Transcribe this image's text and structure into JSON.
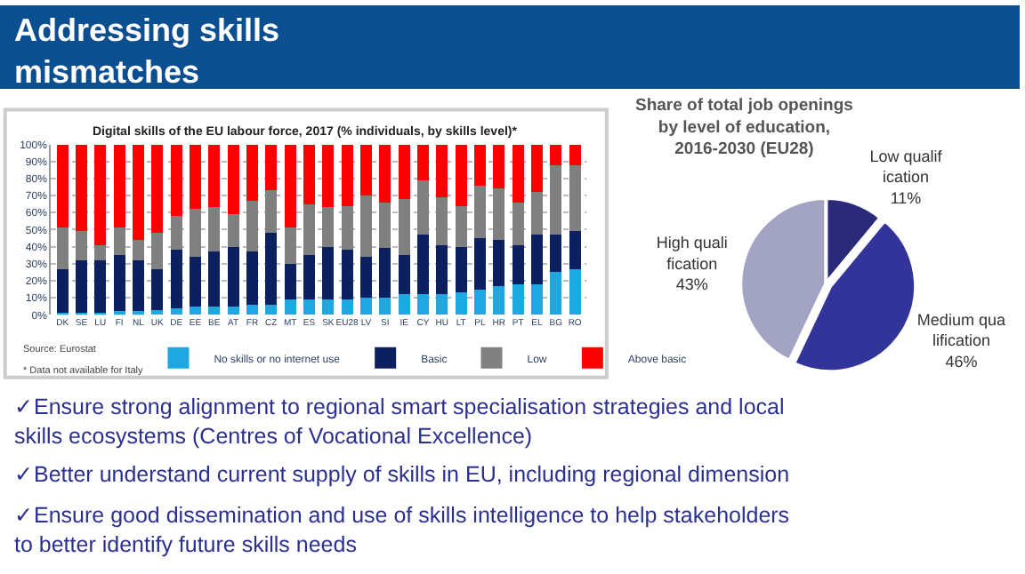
{
  "chart_data": [
    {
      "type": "other",
      "title": "Addressing skills mismatches",
      "annotations": [
        "✓Ensure strong alignment to regional smart specialisation strategies and local skills ecosystems (Centres of Vocational Excellence)",
        "✓Better understand current supply of skills in EU, including regional dimension",
        "✓Ensure good dissemination and use of skills intelligence to help stakeholders to better identify future skills needs"
      ]
    },
    {
      "type": "bar",
      "stacked": true,
      "title": "Digital skills of the EU labour force, 2017 (% individuals, by skills level)*",
      "categories": [
        "DK",
        "SE",
        "LU",
        "FI",
        "NL",
        "UK",
        "DE",
        "EE",
        "BE",
        "AT",
        "FR",
        "CZ",
        "MT",
        "ES",
        "SK",
        "EU28",
        "LV",
        "SI",
        "IE",
        "CY",
        "HU",
        "LT",
        "PL",
        "HR",
        "PT",
        "EL",
        "BG",
        "RO"
      ],
      "series": [
        {
          "name": "No skills or no internet use",
          "color": "#1fa8e0",
          "values": [
            1,
            1,
            1,
            2,
            2,
            3,
            4,
            5,
            5,
            5,
            6,
            6,
            9,
            9,
            9,
            9,
            10,
            10,
            12,
            12,
            12,
            13,
            15,
            17,
            18,
            18,
            25,
            27
          ]
        },
        {
          "name": "Basic",
          "color": "#0c1f5e",
          "values": [
            26,
            31,
            31,
            33,
            30,
            24,
            34,
            29,
            32,
            35,
            31,
            42,
            21,
            26,
            31,
            29,
            24,
            29,
            23,
            35,
            29,
            27,
            30,
            27,
            23,
            29,
            22,
            22
          ]
        },
        {
          "name": "Low",
          "color": "#808080",
          "values": [
            24,
            17,
            9,
            16,
            12,
            21,
            20,
            28,
            26,
            19,
            30,
            25,
            21,
            30,
            23,
            26,
            36,
            27,
            33,
            32,
            28,
            24,
            31,
            30,
            25,
            25,
            41,
            39
          ]
        },
        {
          "name": "Above basic",
          "color": "#ff0000",
          "values": [
            49,
            51,
            59,
            49,
            56,
            52,
            42,
            38,
            37,
            41,
            33,
            27,
            49,
            35,
            37,
            36,
            30,
            34,
            32,
            21,
            31,
            36,
            24,
            26,
            34,
            28,
            12,
            12
          ]
        }
      ],
      "ylim": [
        0,
        100
      ],
      "yticks": [
        {
          "value": 0,
          "label": "0%"
        },
        {
          "value": 10,
          "label": "10%"
        },
        {
          "value": 20,
          "label": "20%"
        },
        {
          "value": 30,
          "label": "30%"
        },
        {
          "value": 40,
          "label": "40%"
        },
        {
          "value": 50,
          "label": "50%"
        },
        {
          "value": 60,
          "label": "60%"
        },
        {
          "value": 70,
          "label": "70%"
        },
        {
          "value": 80,
          "label": "80%"
        },
        {
          "value": 90,
          "label": "90%"
        },
        {
          "value": 100,
          "label": "100%"
        }
      ],
      "grid": "y",
      "legend": "bottom",
      "annotations": [
        "Source: Eurostat",
        "* Data not available for Italy"
      ]
    },
    {
      "type": "pie",
      "title": "Share of total job openings by level of education, 2016-2030 (EU28)",
      "categories": [
        "Low qualification",
        "Medium qualification",
        "High qualification"
      ],
      "values": [
        11,
        46,
        43
      ],
      "value_labels": [
        "11%",
        "46%",
        "43%"
      ],
      "colors": [
        "#2b2a7a",
        "#33349a",
        "#a3a3c4"
      ]
    }
  ]
}
